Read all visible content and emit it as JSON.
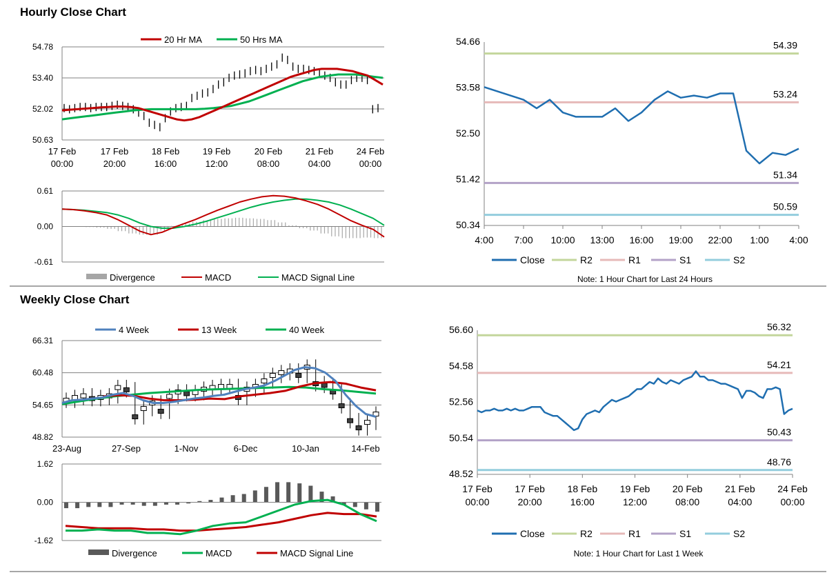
{
  "titles": {
    "hourly": "Hourly Close Chart",
    "weekly": "Weekly Close Chart"
  },
  "colors": {
    "ma20": "#c00000",
    "ma50": "#00b050",
    "macd_red": "#c00000",
    "macd_green": "#00b050",
    "divergence": "#a6a6a6",
    "close": "#1f6eb0",
    "r2": "#c3d69b",
    "r1": "#e6b9b8",
    "s1": "#b3a2c7",
    "s2": "#93cddd",
    "week4": "#4f81bd",
    "week13": "#c00000",
    "week40": "#00b050"
  },
  "chart_data": [
    {
      "id": "hourly_candles",
      "type": "candlestick",
      "legend": [
        "20 Hr MA",
        "50 Hrs MA"
      ],
      "y_ticks": [
        "54.78",
        "53.40",
        "52.02",
        "50.63"
      ],
      "ylim": [
        50.63,
        54.78
      ],
      "x_ticks": [
        [
          "17 Feb",
          "00:00"
        ],
        [
          "17 Feb",
          "20:00"
        ],
        [
          "18 Feb",
          "16:00"
        ],
        [
          "19 Feb",
          "12:00"
        ],
        [
          "20 Feb",
          "08:00"
        ],
        [
          "21 Feb",
          "04:00"
        ],
        [
          "24 Feb",
          "00:00"
        ]
      ],
      "close": [
        52.05,
        52.0,
        52.05,
        52.1,
        52.1,
        52.05,
        52.1,
        52.1,
        52.1,
        52.15,
        52.2,
        52.15,
        52.1,
        52.0,
        51.85,
        51.7,
        51.4,
        51.3,
        51.2,
        51.6,
        51.9,
        52.05,
        52.1,
        52.15,
        52.5,
        52.6,
        52.7,
        52.75,
        52.9,
        53.1,
        53.2,
        53.4,
        53.5,
        53.55,
        53.6,
        53.7,
        53.75,
        53.7,
        53.8,
        53.9,
        54.0,
        54.3,
        54.2,
        53.9,
        53.8,
        53.8,
        53.75,
        53.7,
        53.6,
        53.5,
        53.4,
        53.2,
        53.1,
        53.1,
        53.3,
        53.4,
        53.4,
        53.3,
        52.0,
        52.05
      ],
      "ma20": [
        51.95,
        51.98,
        52.0,
        52.03,
        52.05,
        52.08,
        52.1,
        52.12,
        52.12,
        52.1,
        52.05,
        51.95,
        51.85,
        51.75,
        51.65,
        51.55,
        51.5,
        51.55,
        51.65,
        51.8,
        51.95,
        52.1,
        52.25,
        52.4,
        52.55,
        52.7,
        52.85,
        53.0,
        53.15,
        53.3,
        53.45,
        53.55,
        53.65,
        53.75,
        53.8,
        53.8,
        53.8,
        53.75,
        53.7,
        53.6,
        53.5,
        53.3,
        53.1
      ],
      "ma50": [
        51.55,
        51.6,
        51.65,
        51.7,
        51.75,
        51.8,
        51.85,
        51.9,
        51.95,
        51.98,
        52.0,
        52.0,
        52.0,
        52.0,
        52.0,
        52.0,
        52.02,
        52.05,
        52.1,
        52.15,
        52.25,
        52.35,
        52.5,
        52.65,
        52.8,
        52.95,
        53.1,
        53.25,
        53.35,
        53.45,
        53.5,
        53.55,
        53.55,
        53.55,
        53.5,
        53.45,
        53.4
      ]
    },
    {
      "id": "hourly_macd",
      "type": "macd",
      "y_ticks": [
        "0.61",
        "0.00",
        "-0.61"
      ],
      "ylim": [
        -0.61,
        0.61
      ],
      "legend": [
        "Divergence",
        "MACD",
        "MACD Signal Line"
      ],
      "macd": [
        0.3,
        0.29,
        0.27,
        0.24,
        0.2,
        0.12,
        0.02,
        -0.08,
        -0.14,
        -0.1,
        -0.02,
        0.05,
        0.12,
        0.2,
        0.28,
        0.35,
        0.42,
        0.47,
        0.51,
        0.53,
        0.52,
        0.49,
        0.44,
        0.38,
        0.3,
        0.2,
        0.1,
        0.02,
        -0.05,
        -0.18
      ],
      "signal": [
        0.3,
        0.29,
        0.28,
        0.26,
        0.24,
        0.2,
        0.14,
        0.06,
        0.0,
        -0.03,
        -0.03,
        0.0,
        0.04,
        0.09,
        0.15,
        0.21,
        0.27,
        0.33,
        0.38,
        0.42,
        0.45,
        0.47,
        0.47,
        0.45,
        0.42,
        0.37,
        0.3,
        0.22,
        0.14,
        0.02
      ],
      "divergence": [
        0.0,
        0.0,
        -0.01,
        -0.02,
        -0.04,
        -0.08,
        -0.12,
        -0.14,
        -0.14,
        -0.07,
        0.01,
        0.05,
        0.08,
        0.11,
        0.13,
        0.14,
        0.15,
        0.14,
        0.13,
        0.11,
        0.07,
        0.02,
        -0.03,
        -0.07,
        -0.12,
        -0.17,
        -0.2,
        -0.2,
        -0.19,
        -0.2
      ]
    },
    {
      "id": "hourly_levels",
      "type": "line",
      "y_ticks": [
        "54.66",
        "53.58",
        "52.50",
        "51.42",
        "50.34"
      ],
      "ylim": [
        50.34,
        54.66
      ],
      "x_ticks": [
        "4:00",
        "7:00",
        "10:00",
        "13:00",
        "16:00",
        "19:00",
        "22:00",
        "1:00",
        "4:00"
      ],
      "legend": [
        "Close",
        "R2",
        "R1",
        "S1",
        "S2"
      ],
      "levels": [
        {
          "name": "R2",
          "value": 54.39,
          "label": "54.39"
        },
        {
          "name": "R1",
          "value": 53.24,
          "label": "53.24"
        },
        {
          "name": "S1",
          "value": 51.34,
          "label": "51.34"
        },
        {
          "name": "S2",
          "value": 50.59,
          "label": "50.59"
        }
      ],
      "close": [
        53.6,
        53.5,
        53.4,
        53.3,
        53.1,
        53.3,
        53.0,
        52.9,
        52.9,
        52.9,
        53.1,
        52.8,
        53.0,
        53.3,
        53.5,
        53.35,
        53.4,
        53.35,
        53.45,
        53.45,
        52.1,
        51.8,
        52.05,
        52.0,
        52.15
      ],
      "note": "Note: 1 Hour Chart for Last 24 Hours"
    },
    {
      "id": "weekly_candles",
      "type": "candlestick",
      "legend": [
        "4 Week",
        "13 Week",
        "40 Week"
      ],
      "y_ticks": [
        "66.31",
        "60.48",
        "54.65",
        "48.82"
      ],
      "ylim": [
        48.82,
        66.31
      ],
      "x_ticks": [
        "23-Aug",
        "27-Sep",
        "1-Nov",
        "6-Dec",
        "10-Jan",
        "14-Feb"
      ],
      "close": [
        55.5,
        56.0,
        56.3,
        55.8,
        56.0,
        56.3,
        57.8,
        57.4,
        52.5,
        54.0,
        55.0,
        53.5,
        56.2,
        57.0,
        56.7,
        56.9,
        57.5,
        57.8,
        58.0,
        58.0,
        56.0,
        57.5,
        58.0,
        59.0,
        60.0,
        60.5,
        60.8,
        60.0,
        61.5,
        58.5,
        58.2,
        57.0,
        54.5,
        51.8,
        50.5,
        51.5,
        53.0
      ],
      "week4": [
        55.0,
        55.5,
        55.6,
        55.8,
        56.0,
        56.5,
        56.8,
        56.3,
        55.5,
        55.0,
        55.0,
        55.2,
        55.5,
        55.8,
        56.0,
        56.3,
        56.5,
        57.0,
        57.5,
        57.8,
        58.2,
        59.0,
        60.0,
        61.0,
        61.5,
        61.3,
        60.5,
        59.0,
        56.5,
        54.5,
        53.0,
        52.5
      ],
      "week13": [
        56.2,
        56.4,
        56.3,
        55.8,
        55.5,
        55.5,
        55.6,
        55.8,
        55.7,
        56.2,
        56.5,
        56.8,
        57.2,
        58.0,
        58.6,
        58.8,
        58.5,
        57.8,
        57.3
      ],
      "week40": [
        54.8,
        55.3,
        55.8,
        56.2,
        56.5,
        56.8,
        57.0,
        57.2,
        57.4,
        57.5,
        57.6,
        57.7,
        57.8,
        57.9,
        57.8,
        57.5,
        57.3,
        57.0,
        56.7
      ],
      "volume": []
    },
    {
      "id": "weekly_macd",
      "type": "macd",
      "y_ticks": [
        "1.62",
        "0.00",
        "-1.62"
      ],
      "ylim": [
        -1.62,
        1.62
      ],
      "legend": [
        "Divergence",
        "MACD",
        "MACD Signal Line"
      ],
      "macd": [
        -1.2,
        -1.2,
        -1.15,
        -1.2,
        -1.2,
        -1.3,
        -1.3,
        -1.35,
        -1.2,
        -1.0,
        -0.9,
        -0.85,
        -0.6,
        -0.35,
        -0.1,
        0.05,
        0.1,
        -0.1,
        -0.5,
        -0.8
      ],
      "signal": [
        -1.0,
        -1.05,
        -1.1,
        -1.1,
        -1.1,
        -1.15,
        -1.15,
        -1.2,
        -1.2,
        -1.15,
        -1.1,
        -1.05,
        -0.95,
        -0.85,
        -0.7,
        -0.55,
        -0.45,
        -0.5,
        -0.5,
        -0.6
      ],
      "divergence": [
        -0.25,
        -0.25,
        -0.2,
        -0.2,
        -0.2,
        -0.1,
        -0.1,
        -0.15,
        -0.15,
        -0.1,
        -0.1,
        -0.05,
        0.05,
        0.1,
        0.2,
        0.3,
        0.35,
        0.5,
        0.65,
        0.85,
        0.85,
        0.8,
        0.7,
        0.45,
        0.25,
        -0.1,
        -0.2,
        -0.3,
        -0.4
      ],
      "x_ticks": []
    },
    {
      "id": "weekly_levels",
      "type": "line",
      "y_ticks": [
        "56.60",
        "54.58",
        "52.56",
        "50.54",
        "48.52"
      ],
      "ylim": [
        48.52,
        56.6
      ],
      "x_ticks": [
        [
          "17 Feb",
          "00:00"
        ],
        [
          "17 Feb",
          "20:00"
        ],
        [
          "18 Feb",
          "16:00"
        ],
        [
          "19 Feb",
          "12:00"
        ],
        [
          "20 Feb",
          "08:00"
        ],
        [
          "21 Feb",
          "04:00"
        ],
        [
          "24 Feb",
          "00:00"
        ]
      ],
      "legend": [
        "Close",
        "R2",
        "R1",
        "S1",
        "S2"
      ],
      "levels": [
        {
          "name": "R2",
          "value": 56.32,
          "label": "56.32"
        },
        {
          "name": "R1",
          "value": 54.21,
          "label": "54.21"
        },
        {
          "name": "S1",
          "value": 50.43,
          "label": "50.43"
        },
        {
          "name": "S2",
          "value": 48.76,
          "label": "48.76"
        }
      ],
      "close": [
        52.1,
        52.0,
        52.1,
        52.1,
        52.2,
        52.1,
        52.1,
        52.2,
        52.1,
        52.2,
        52.1,
        52.1,
        52.2,
        52.3,
        52.3,
        52.3,
        52.0,
        51.9,
        51.8,
        51.8,
        51.6,
        51.4,
        51.2,
        51.0,
        51.1,
        51.6,
        51.9,
        52.0,
        52.1,
        52.0,
        52.3,
        52.5,
        52.7,
        52.6,
        52.7,
        52.8,
        52.9,
        53.1,
        53.3,
        53.3,
        53.5,
        53.7,
        53.6,
        53.9,
        53.7,
        53.6,
        53.8,
        53.7,
        53.6,
        53.8,
        53.9,
        54.0,
        54.3,
        54.0,
        54.0,
        53.8,
        53.8,
        53.7,
        53.6,
        53.6,
        53.5,
        53.4,
        53.3,
        52.8,
        53.2,
        53.2,
        53.1,
        52.9,
        52.8,
        53.3,
        53.3,
        53.4,
        53.3,
        51.9,
        52.1,
        52.2
      ],
      "note": "Note: 1 Hour Chart for Last 1 Week"
    }
  ]
}
